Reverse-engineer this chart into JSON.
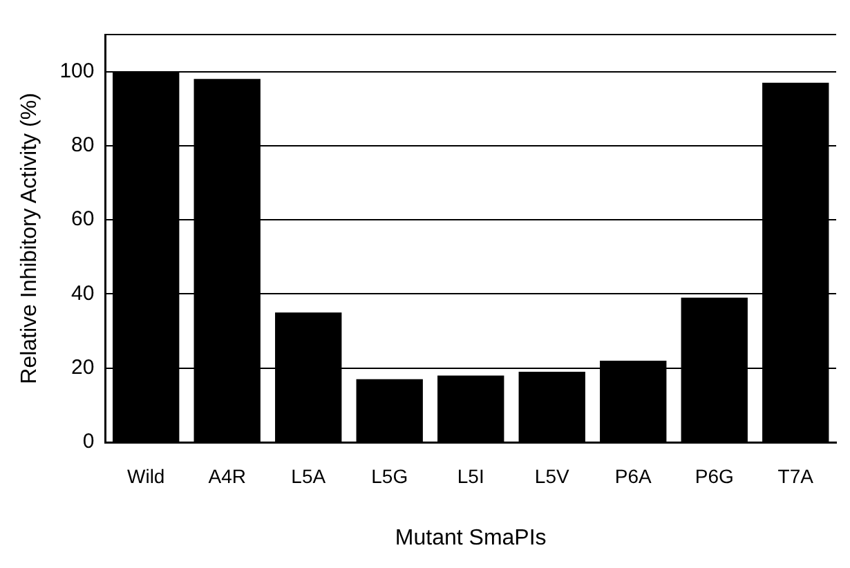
{
  "chart_data": {
    "type": "bar",
    "xlabel": "Mutant SmaPIs",
    "ylabel": "Relative Inhibitory Activity (%)",
    "categories": [
      "Wild",
      "A4R",
      "L5A",
      "L5G",
      "L5I",
      "L5V",
      "P6A",
      "P6G",
      "T7A"
    ],
    "values": [
      100,
      98,
      35,
      17,
      18,
      19,
      22,
      39,
      97
    ],
    "color": "#000000",
    "ylim": [
      0,
      110
    ],
    "yticks": [
      0,
      20,
      40,
      60,
      80,
      100
    ],
    "grid": "y",
    "legend": false
  }
}
